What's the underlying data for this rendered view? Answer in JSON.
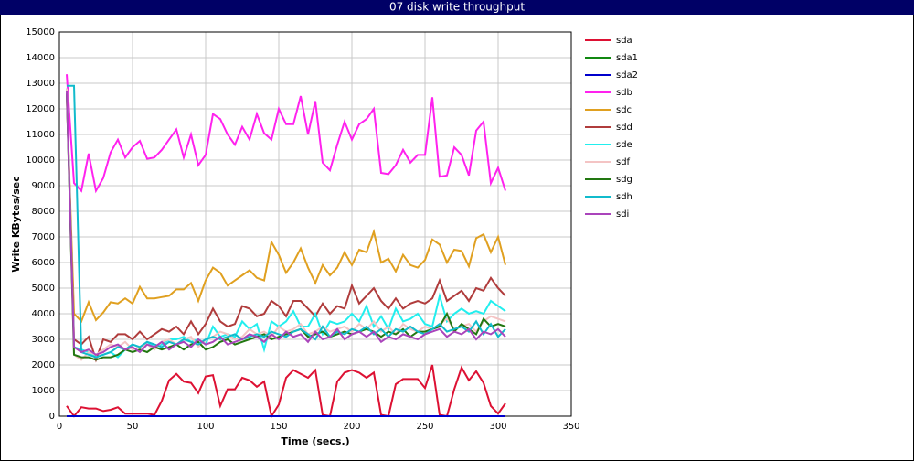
{
  "chart_data": {
    "type": "line",
    "title": "07 disk write throughput",
    "x_label": "Time (secs.)",
    "y_label": "Write KBytes/sec",
    "xlim": [
      0,
      350
    ],
    "xticks": [
      0,
      50,
      100,
      150,
      200,
      250,
      300,
      350
    ],
    "ylim": [
      0,
      15000
    ],
    "yticks": [
      0,
      1000,
      2000,
      3000,
      4000,
      5000,
      6000,
      7000,
      8000,
      9000,
      10000,
      11000,
      12000,
      13000,
      14000,
      15000
    ],
    "grid": true,
    "legend": "right",
    "x": [
      5,
      10,
      15,
      20,
      25,
      30,
      35,
      40,
      45,
      50,
      55,
      60,
      65,
      70,
      75,
      80,
      85,
      90,
      95,
      100,
      105,
      110,
      115,
      120,
      125,
      130,
      135,
      140,
      145,
      150,
      155,
      160,
      165,
      170,
      175,
      180,
      185,
      190,
      195,
      200,
      205,
      210,
      215,
      220,
      225,
      230,
      235,
      240,
      245,
      250,
      255,
      260,
      265,
      270,
      275,
      280,
      285,
      290,
      295,
      300,
      305
    ],
    "series": [
      {
        "name": "sda",
        "color": "#dd1133",
        "values": [
          400,
          0,
          350,
          300,
          300,
          200,
          250,
          350,
          100,
          100,
          100,
          100,
          50,
          600,
          1400,
          1650,
          1350,
          1300,
          900,
          1550,
          1600,
          400,
          1050,
          1050,
          1500,
          1400,
          1150,
          1350,
          0,
          450,
          1500,
          1800,
          1650,
          1500,
          1800,
          50,
          0,
          1350,
          1700,
          1800,
          1700,
          1500,
          1700,
          50,
          0,
          1250,
          1450,
          1450,
          1450,
          1100,
          2000,
          50,
          0,
          1050,
          1900,
          1400,
          1750,
          1300,
          400,
          100,
          500
        ]
      },
      {
        "name": "sda1",
        "color": "#118811",
        "values": [
          0,
          0,
          0,
          0,
          0,
          0,
          0,
          0,
          0,
          0,
          0,
          0,
          0,
          0,
          0,
          0,
          0,
          0,
          0,
          0,
          0,
          0,
          0,
          0,
          0,
          0,
          0,
          0,
          0,
          0,
          0,
          0,
          0,
          0,
          0,
          0,
          0,
          0,
          0,
          0,
          0,
          0,
          0,
          0,
          0,
          0,
          0,
          0,
          0,
          0,
          0,
          0,
          0,
          0,
          0,
          0,
          0,
          0,
          0,
          0,
          0
        ]
      },
      {
        "name": "sda2",
        "color": "#0000cc",
        "values": [
          0,
          0,
          0,
          0,
          0,
          0,
          0,
          0,
          0,
          0,
          0,
          0,
          0,
          0,
          0,
          0,
          0,
          0,
          0,
          0,
          0,
          0,
          0,
          0,
          0,
          0,
          0,
          0,
          0,
          0,
          0,
          0,
          0,
          0,
          0,
          0,
          0,
          0,
          0,
          0,
          0,
          0,
          0,
          0,
          0,
          0,
          0,
          0,
          0,
          0,
          0,
          0,
          0,
          0,
          0,
          0,
          0,
          0,
          0,
          0,
          0
        ]
      },
      {
        "name": "sdb",
        "color": "#ff22ee",
        "values": [
          13350,
          9100,
          8800,
          10250,
          8800,
          9300,
          10300,
          10800,
          10100,
          10500,
          10750,
          10050,
          10100,
          10400,
          10800,
          11200,
          10100,
          11000,
          9800,
          10200,
          11800,
          11600,
          11000,
          10600,
          11300,
          10800,
          11800,
          11050,
          10800,
          12000,
          11400,
          11400,
          12500,
          11000,
          12300,
          9900,
          9600,
          10600,
          11500,
          10800,
          11400,
          11600,
          12000,
          9500,
          9450,
          9800,
          10400,
          9900,
          10200,
          10200,
          12450,
          9350,
          9400,
          10500,
          10200,
          9400,
          11150,
          11500,
          9100,
          9700,
          8800
        ]
      },
      {
        "name": "sdc",
        "color": "#e0a020",
        "values": [
          12500,
          4000,
          3700,
          4450,
          3750,
          4050,
          4450,
          4400,
          4600,
          4400,
          5050,
          4600,
          4600,
          4650,
          4700,
          4950,
          4950,
          5200,
          4500,
          5300,
          5800,
          5600,
          5100,
          5300,
          5500,
          5700,
          5400,
          5300,
          6800,
          6300,
          5600,
          6000,
          6550,
          5800,
          5200,
          5900,
          5500,
          5800,
          6400,
          5900,
          6500,
          6400,
          7200,
          6000,
          6150,
          5650,
          6300,
          5900,
          5800,
          6100,
          6900,
          6700,
          6000,
          6500,
          6450,
          5850,
          6950,
          7100,
          6400,
          7000,
          5900
        ]
      },
      {
        "name": "sdd",
        "color": "#b03c3c",
        "values": [
          12800,
          3000,
          2800,
          3100,
          2200,
          3000,
          2900,
          3200,
          3200,
          3000,
          3300,
          3000,
          3200,
          3400,
          3300,
          3500,
          3200,
          3700,
          3200,
          3600,
          4200,
          3700,
          3500,
          3600,
          4300,
          4200,
          3900,
          4000,
          4500,
          4300,
          3900,
          4500,
          4500,
          4200,
          3900,
          4400,
          4000,
          4300,
          4200,
          5100,
          4400,
          4700,
          5000,
          4500,
          4200,
          4600,
          4200,
          4400,
          4500,
          4400,
          4600,
          5300,
          4500,
          4700,
          4900,
          4500,
          5000,
          4900,
          5400,
          5000,
          4700
        ]
      },
      {
        "name": "sde",
        "color": "#22eeee",
        "values": [
          12800,
          2700,
          2600,
          2500,
          2300,
          2400,
          2500,
          2300,
          2600,
          2800,
          2700,
          2900,
          2700,
          2800,
          3000,
          3000,
          3100,
          2900,
          3000,
          2800,
          3500,
          3100,
          3200,
          3100,
          3700,
          3400,
          3600,
          2600,
          3700,
          3500,
          3700,
          4100,
          3500,
          3500,
          4000,
          3200,
          3700,
          3600,
          3700,
          4000,
          3700,
          4300,
          3500,
          3900,
          3400,
          4200,
          3700,
          3800,
          4000,
          3600,
          3500,
          4700,
          3700,
          4000,
          4200,
          4000,
          4100,
          4000,
          4500,
          4300,
          4100
        ]
      },
      {
        "name": "sdf",
        "color": "#f4c4c4",
        "values": [
          12800,
          2400,
          2200,
          2500,
          2400,
          2600,
          2800,
          2700,
          2900,
          2600,
          2700,
          2800,
          2600,
          2900,
          3000,
          2800,
          3000,
          3100,
          2700,
          3000,
          3100,
          3300,
          3200,
          3000,
          3100,
          3400,
          3200,
          3300,
          3100,
          3500,
          3300,
          3400,
          3600,
          3200,
          3300,
          3500,
          3300,
          3400,
          3500,
          3300,
          3600,
          3400,
          3700,
          3300,
          3500,
          3200,
          3600,
          3400,
          3300,
          3500,
          3400,
          3600,
          3800,
          3400,
          3500,
          3600,
          3300,
          3700,
          3900,
          3800,
          3700
        ]
      },
      {
        "name": "sdg",
        "color": "#227711",
        "values": [
          12600,
          2400,
          2300,
          2300,
          2200,
          2300,
          2300,
          2400,
          2600,
          2500,
          2600,
          2500,
          2700,
          2600,
          2700,
          2800,
          2600,
          2800,
          2900,
          2600,
          2700,
          2900,
          3000,
          2800,
          2900,
          3000,
          3100,
          3200,
          3000,
          3100,
          3200,
          3300,
          3400,
          3100,
          3200,
          3300,
          3100,
          3200,
          3300,
          3200,
          3300,
          3400,
          3300,
          3100,
          3300,
          3200,
          3400,
          3100,
          3300,
          3300,
          3400,
          3500,
          4000,
          3300,
          3600,
          3400,
          3200,
          3800,
          3500,
          3600,
          3500
        ]
      },
      {
        "name": "sdh",
        "color": "#11bbcc",
        "values": [
          12900,
          12900,
          2500,
          2400,
          2300,
          2400,
          2500,
          2700,
          2600,
          2800,
          2700,
          2900,
          2800,
          2700,
          2900,
          2800,
          3000,
          2900,
          2800,
          3000,
          3100,
          3000,
          3100,
          3200,
          3000,
          3100,
          3200,
          3100,
          3300,
          3200,
          3100,
          3300,
          3400,
          3200,
          3000,
          3500,
          3100,
          3300,
          3200,
          3400,
          3300,
          3500,
          3200,
          3400,
          3100,
          3400,
          3300,
          3500,
          3300,
          3200,
          3400,
          3600,
          3300,
          3400,
          3500,
          3300,
          3700,
          3200,
          3600,
          3100,
          3400
        ]
      },
      {
        "name": "sdi",
        "color": "#aa44bb",
        "values": [
          12700,
          2700,
          2500,
          2600,
          2400,
          2500,
          2700,
          2800,
          2600,
          2700,
          2500,
          2800,
          2700,
          2900,
          2600,
          2800,
          2900,
          2700,
          3000,
          2800,
          2900,
          3100,
          2800,
          2900,
          3000,
          3200,
          3100,
          2900,
          3200,
          3000,
          3300,
          3100,
          3200,
          2900,
          3300,
          3000,
          3100,
          3400,
          3000,
          3200,
          3300,
          3100,
          3300,
          2900,
          3100,
          3000,
          3200,
          3100,
          3000,
          3200,
          3300,
          3400,
          3100,
          3300,
          3200,
          3400,
          3000,
          3300,
          3200,
          3400,
          3100
        ]
      }
    ]
  }
}
